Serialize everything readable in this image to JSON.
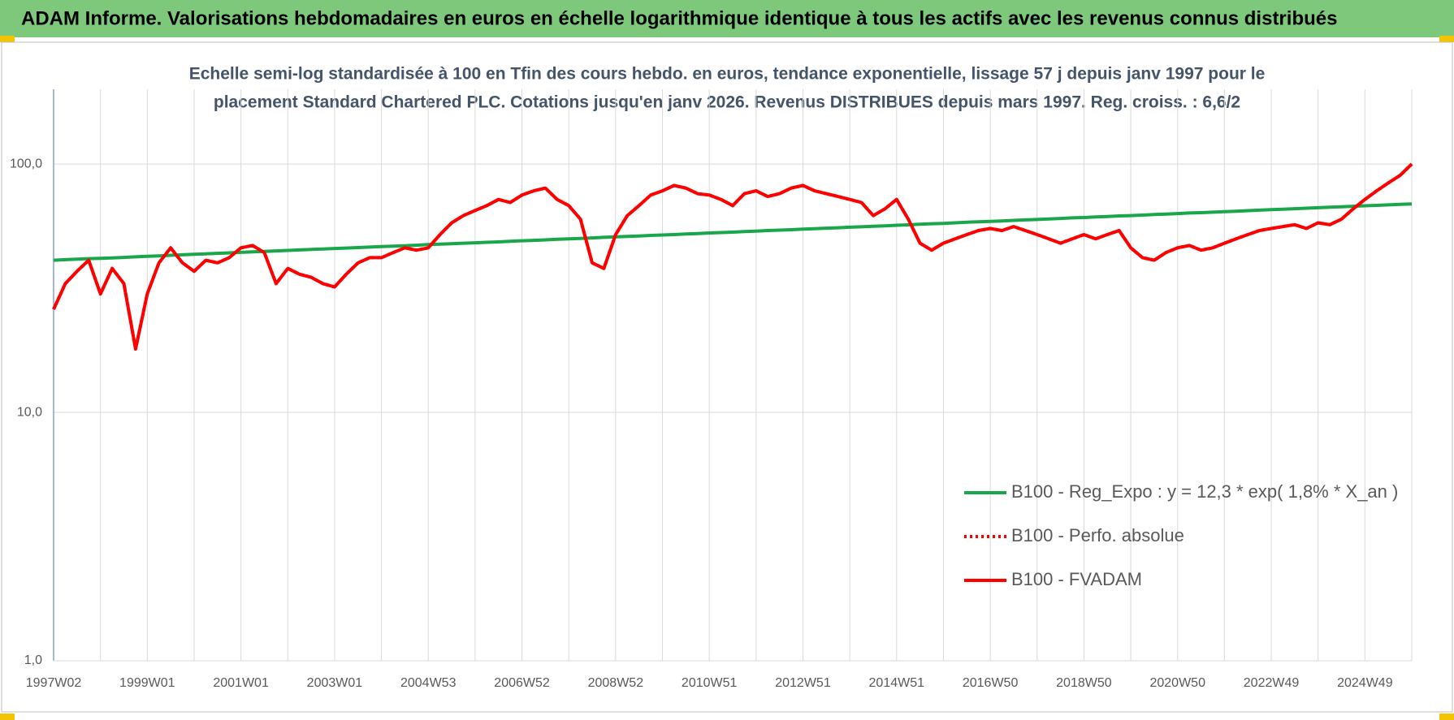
{
  "header": {
    "title": "ADAM Informe. Valorisations hebdomadaires en euros en échelle logarithmique identique à tous les actifs avec les revenus connus distribués"
  },
  "chart_data": {
    "type": "line",
    "title": [
      "Echelle semi-log standardisée à 100 en Tfin des cours hebdo. en euros, tendance exponentielle, lissage 57 j depuis janv 1997 pour le",
      "placement Standard Chartered PLC. Cotations jusqu'en janv 2026. Revenus DISTRIBUES depuis mars 1997. Reg. croiss. : 6,6/2"
    ],
    "categories": [
      "1997W02",
      null,
      null,
      null,
      null,
      null,
      null,
      null,
      "1999W01",
      null,
      null,
      null,
      null,
      null,
      null,
      null,
      "2001W01",
      null,
      null,
      null,
      null,
      null,
      null,
      null,
      "2003W01",
      null,
      null,
      null,
      null,
      null,
      null,
      null,
      "2004W53",
      null,
      null,
      null,
      null,
      null,
      null,
      null,
      "2006W52",
      null,
      null,
      null,
      null,
      null,
      null,
      null,
      "2008W52",
      null,
      null,
      null,
      null,
      null,
      null,
      null,
      "2010W51",
      null,
      null,
      null,
      null,
      null,
      null,
      null,
      "2012W51",
      null,
      null,
      null,
      null,
      null,
      null,
      null,
      "2014W51",
      null,
      null,
      null,
      null,
      null,
      null,
      null,
      "2016W50",
      null,
      null,
      null,
      null,
      null,
      null,
      null,
      "2018W50",
      null,
      null,
      null,
      null,
      null,
      null,
      null,
      "2020W50",
      null,
      null,
      null,
      null,
      null,
      null,
      null,
      "2022W49",
      null,
      null,
      null,
      null,
      null,
      null,
      null,
      "2024W49",
      null,
      null,
      null,
      null
    ],
    "log_y": true,
    "ylim": [
      1,
      200
    ],
    "yticks": [
      {
        "value": 1,
        "label": "1,0"
      },
      {
        "value": 10,
        "label": "10,0"
      },
      {
        "value": 100,
        "label": "100,0"
      }
    ],
    "grid": true,
    "legend": "lower right",
    "series": [
      {
        "name": "B100 - Reg_Expo : y = 12,3 * exp( 1,8% *  X_an )",
        "color": "#1aa64a",
        "line_style": "solid",
        "values": [
          41.0,
          41.2,
          41.4,
          41.6,
          41.7,
          41.9,
          42.1,
          42.3,
          42.5,
          42.7,
          42.9,
          43.1,
          43.3,
          43.5,
          43.7,
          43.9,
          44.1,
          44.3,
          44.5,
          44.7,
          44.9,
          45.1,
          45.3,
          45.5,
          45.7,
          45.9,
          46.1,
          46.3,
          46.5,
          46.7,
          46.9,
          47.1,
          47.4,
          47.6,
          47.8,
          48.0,
          48.2,
          48.4,
          48.6,
          48.9,
          49.1,
          49.3,
          49.5,
          49.8,
          50.0,
          50.2,
          50.4,
          50.7,
          50.9,
          51.1,
          51.3,
          51.6,
          51.8,
          52.0,
          52.3,
          52.5,
          52.8,
          53.0,
          53.2,
          53.5,
          53.7,
          54.0,
          54.2,
          54.4,
          54.7,
          54.9,
          55.2,
          55.4,
          55.7,
          55.9,
          56.2,
          56.4,
          56.7,
          56.9,
          57.2,
          57.5,
          57.7,
          58.0,
          58.3,
          58.5,
          58.8,
          59.0,
          59.3,
          59.6,
          59.8,
          60.1,
          60.4,
          60.7,
          60.9,
          61.2,
          61.5,
          61.8,
          62.0,
          62.3,
          62.6,
          62.9,
          63.2,
          63.5,
          63.7,
          64.0,
          64.3,
          64.6,
          64.9,
          65.2,
          65.5,
          65.8,
          66.1,
          66.4,
          66.7,
          67.0,
          67.3,
          67.6,
          67.9,
          68.2,
          68.5,
          68.8,
          69.1
        ]
      },
      {
        "name": "B100 - Perfo. absolue",
        "color": "#ff0000",
        "line_style": "dotted",
        "values": [
          26,
          33,
          37,
          41,
          30,
          38,
          33,
          18,
          30,
          40,
          46,
          40,
          37,
          41,
          40,
          42,
          46,
          47,
          44,
          33,
          38,
          36,
          35,
          33,
          32,
          36,
          40,
          42,
          42,
          44,
          46,
          45,
          46,
          52,
          58,
          62,
          65,
          68,
          72,
          70,
          75,
          78,
          80,
          72,
          68,
          60,
          40,
          38,
          52,
          62,
          68,
          75,
          78,
          82,
          80,
          76,
          75,
          72,
          68,
          76,
          78,
          74,
          76,
          80,
          82,
          78,
          76,
          74,
          72,
          70,
          62,
          66,
          72,
          60,
          48,
          45,
          48,
          50,
          52,
          54,
          55,
          54,
          56,
          54,
          52,
          50,
          48,
          50,
          52,
          50,
          52,
          54,
          46,
          42,
          41,
          44,
          46,
          47,
          45,
          46,
          48,
          50,
          52,
          54,
          55,
          56,
          57,
          55,
          58,
          57,
          60,
          66,
          72,
          78,
          84,
          90,
          100
        ]
      },
      {
        "name": "B100 - FVADAM",
        "color": "#ff0000",
        "line_style": "solid",
        "values": [
          26,
          33,
          37,
          41,
          30,
          38,
          33,
          18,
          30,
          40,
          46,
          40,
          37,
          41,
          40,
          42,
          46,
          47,
          44,
          33,
          38,
          36,
          35,
          33,
          32,
          36,
          40,
          42,
          42,
          44,
          46,
          45,
          46,
          52,
          58,
          62,
          65,
          68,
          72,
          70,
          75,
          78,
          80,
          72,
          68,
          60,
          40,
          38,
          52,
          62,
          68,
          75,
          78,
          82,
          80,
          76,
          75,
          72,
          68,
          76,
          78,
          74,
          76,
          80,
          82,
          78,
          76,
          74,
          72,
          70,
          62,
          66,
          72,
          60,
          48,
          45,
          48,
          50,
          52,
          54,
          55,
          54,
          56,
          54,
          52,
          50,
          48,
          50,
          52,
          50,
          52,
          54,
          46,
          42,
          41,
          44,
          46,
          47,
          45,
          46,
          48,
          50,
          52,
          54,
          55,
          56,
          57,
          55,
          58,
          57,
          60,
          66,
          72,
          78,
          84,
          90,
          100
        ]
      }
    ]
  }
}
